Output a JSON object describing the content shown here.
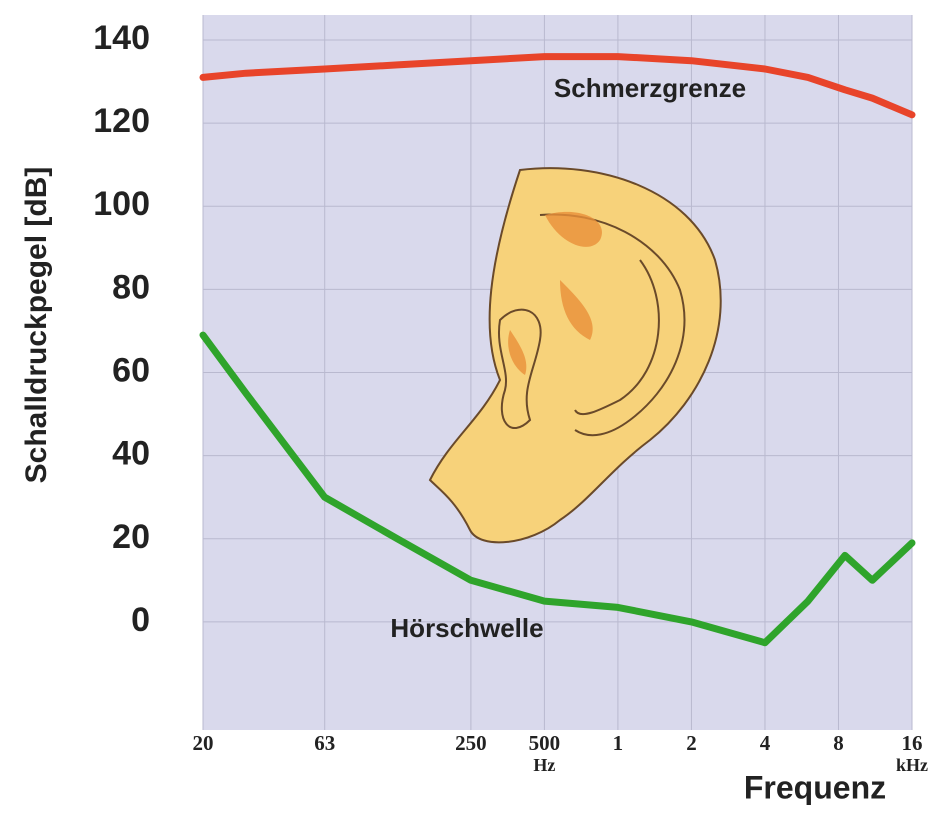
{
  "chart_data": {
    "type": "line",
    "y_label": "Schalldruckpegel [dB]",
    "x_label": "Frequenz",
    "hz_unit": "Hz",
    "khz_unit": "kHz",
    "x": [
      20,
      30,
      63,
      125,
      250,
      500,
      1000,
      2000,
      4000,
      6000,
      8500,
      11000,
      16000
    ],
    "series": [
      {
        "name": "Schmerzgrenze",
        "color": "#e8442a",
        "values": [
          131,
          132,
          133,
          134,
          135,
          136,
          136,
          135,
          133,
          131,
          128,
          126,
          122
        ]
      },
      {
        "name": "Hörschwelle",
        "color": "#2fa42b",
        "values": [
          69,
          55,
          30,
          20,
          10,
          5,
          3.5,
          0,
          -5,
          5,
          16,
          10,
          19
        ]
      }
    ],
    "xlog": true,
    "xlim": [
      20,
      16000
    ],
    "ylim": [
      -26,
      146
    ],
    "xticks": [
      20,
      63,
      250,
      500,
      {
        "value": 1000,
        "label": "1"
      },
      {
        "value": 2000,
        "label": "2"
      },
      {
        "value": 4000,
        "label": "4"
      },
      {
        "value": 8000,
        "label": "8"
      },
      {
        "value": 16000,
        "label": "16"
      }
    ],
    "yticks": [
      0,
      20,
      40,
      60,
      80,
      100,
      120,
      140
    ],
    "grid": true,
    "background": "#d9d9ec"
  }
}
